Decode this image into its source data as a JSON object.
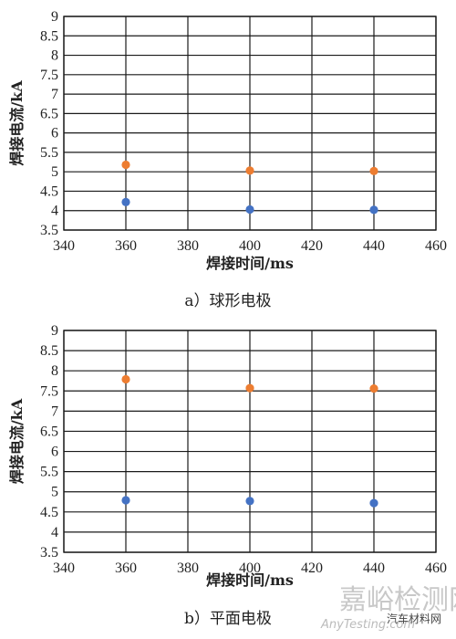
{
  "chart_data": [
    {
      "type": "scatter",
      "caption": "a）球形电极",
      "xlabel": "焊接时间/ms",
      "ylabel": "焊接电流/kA",
      "xlim": [
        340,
        460
      ],
      "ylim": [
        3.5,
        9
      ],
      "x_ticks": [
        "340",
        "360",
        "380",
        "400",
        "420",
        "440",
        "460"
      ],
      "y_ticks": [
        "3.5",
        "4",
        "4.5",
        "5",
        "5.5",
        "6",
        "6.5",
        "7",
        "7.5",
        "8",
        "8.5",
        "9"
      ],
      "grid": true,
      "series": [
        {
          "color": "#4472c4",
          "points": [
            [
              360,
              4.22
            ],
            [
              400,
              4.03
            ],
            [
              440,
              4.02
            ]
          ]
        },
        {
          "color": "#ed7d31",
          "points": [
            [
              360,
              5.18
            ],
            [
              400,
              5.03
            ],
            [
              440,
              5.02
            ]
          ]
        }
      ]
    },
    {
      "type": "scatter",
      "caption": "b）平面电极",
      "xlabel": "焊接时间/ms",
      "ylabel": "焊接电流/kA",
      "xlim": [
        340,
        460
      ],
      "ylim": [
        3.5,
        9
      ],
      "x_ticks": [
        "340",
        "360",
        "380",
        "400",
        "420",
        "440",
        "460"
      ],
      "y_ticks": [
        "3.5",
        "4",
        "4.5",
        "5",
        "5.5",
        "6",
        "6.5",
        "7",
        "7.5",
        "8",
        "8.5",
        "9"
      ],
      "grid": true,
      "series": [
        {
          "color": "#4472c4",
          "points": [
            [
              360,
              4.79
            ],
            [
              400,
              4.77
            ],
            [
              440,
              4.72
            ]
          ]
        },
        {
          "color": "#ed7d31",
          "points": [
            [
              360,
              7.79
            ],
            [
              400,
              7.57
            ],
            [
              440,
              7.56
            ]
          ]
        }
      ]
    }
  ],
  "watermark": {
    "cn": "嘉峪检测网",
    "en": "AnyTesting.com",
    "tag": "汽车材料网"
  }
}
